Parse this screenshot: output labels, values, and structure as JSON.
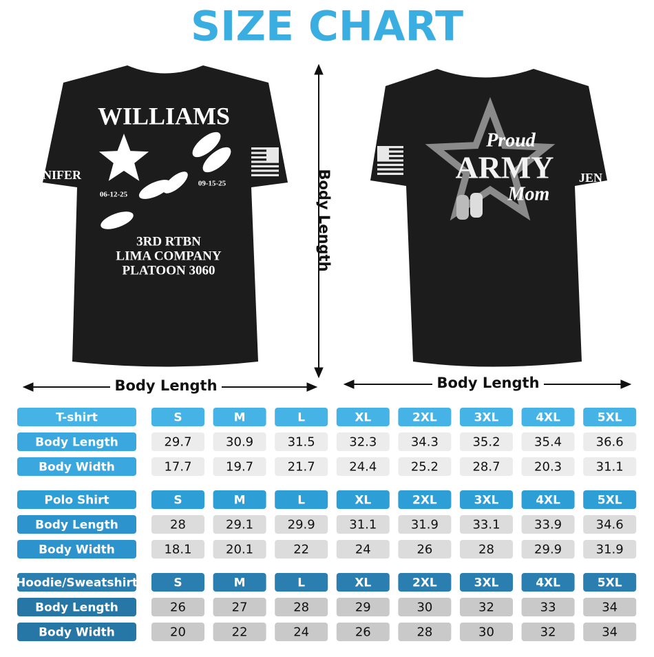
{
  "title": "SIZE CHART",
  "back_shirt": {
    "name": "WILLIAMS",
    "sleeve": "NIFER",
    "date_left": "06-12-25",
    "date_right": "09-15-25",
    "lines": [
      "3RD RTBN",
      "LIMA COMPANY",
      "PLATOON 3060"
    ]
  },
  "front_shirt": {
    "lines": [
      "Proud",
      "ARMY",
      "Mom"
    ],
    "sleeve": "JEN"
  },
  "measure_labels": {
    "vertical": "Body Length",
    "left": "Body Length",
    "right": "Body Length"
  },
  "tables": [
    {
      "header": [
        "T-shirt",
        "S",
        "M",
        "L",
        "XL",
        "2XL",
        "3XL",
        "4XL",
        "5XL"
      ],
      "rows": [
        [
          "Body Length",
          "29.7",
          "30.9",
          "31.5",
          "32.3",
          "34.3",
          "35.2",
          "35.4",
          "36.6"
        ],
        [
          "Body Width",
          "17.7",
          "19.7",
          "21.7",
          "24.4",
          "25.2",
          "28.7",
          "20.3",
          "31.1"
        ]
      ]
    },
    {
      "header": [
        "Polo Shirt",
        "S",
        "M",
        "L",
        "XL",
        "2XL",
        "3XL",
        "4XL",
        "5XL"
      ],
      "rows": [
        [
          "Body Length",
          "28",
          "29.1",
          "29.9",
          "31.1",
          "31.9",
          "33.1",
          "33.9",
          "34.6"
        ],
        [
          "Body Width",
          "18.1",
          "20.1",
          "22",
          "24",
          "26",
          "28",
          "29.9",
          "31.9"
        ]
      ]
    },
    {
      "header": [
        "Hoodie/Sweatshirt",
        "S",
        "M",
        "L",
        "XL",
        "2XL",
        "3XL",
        "4XL",
        "5XL"
      ],
      "rows": [
        [
          "Body Length",
          "26",
          "27",
          "28",
          "29",
          "30",
          "32",
          "33",
          "34"
        ],
        [
          "Body Width",
          "20",
          "22",
          "24",
          "26",
          "28",
          "30",
          "32",
          "34"
        ]
      ]
    }
  ]
}
